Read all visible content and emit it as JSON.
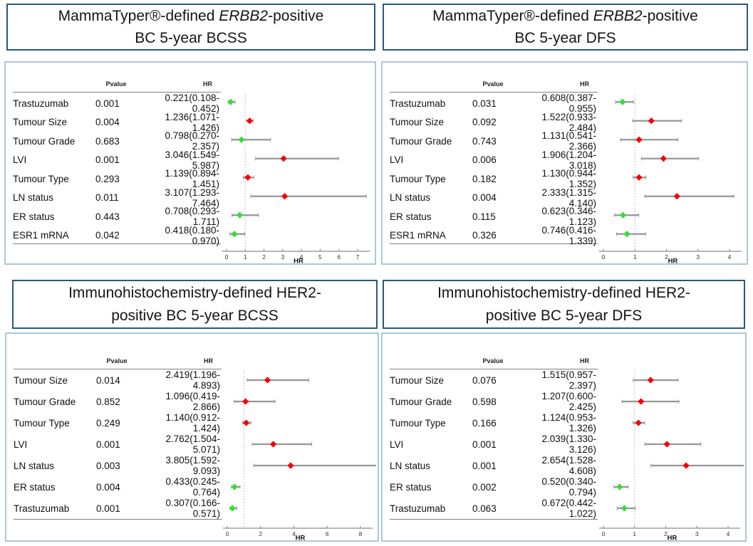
{
  "figure": {
    "table_headers": {
      "pvalue": "Pvalue",
      "hr": "HR"
    },
    "axis_label": "HR",
    "colors": {
      "title_border": "#27597f",
      "panel_border": "#a9c9de",
      "marker_hr_above_1": "#f70000",
      "marker_hr_below_1": "#35dd35",
      "ci_line": "#969696",
      "ref_line": "#b5b5b5",
      "axis_line": "#8a8a8a"
    }
  },
  "chart_data": [
    {
      "type": "scatter",
      "subtype": "forest-plot",
      "title": "MammaTyper®-defined ERBB2-positive BC 5-year BCSS",
      "title_pre": "MammaTyper®-defined ",
      "title_italic": "ERBB2",
      "title_post": "-positive BC 5-year BCSS",
      "xlabel": "HR",
      "xlim": [
        0,
        7
      ],
      "xticks": [
        0,
        1,
        2,
        3,
        4,
        5,
        6,
        7
      ],
      "ref_line": 1,
      "rows": [
        {
          "label": "Trastuzumab",
          "pvalue": "0.001",
          "hr": 0.221,
          "ci_low": 0.108,
          "ci_high": 0.452,
          "hr_text": "0.221(0.108- 0.452)"
        },
        {
          "label": "Tumour Size",
          "pvalue": "0.004",
          "hr": 1.236,
          "ci_low": 1.071,
          "ci_high": 1.426,
          "hr_text": "1.236(1.071- 1.426)"
        },
        {
          "label": "Tumour Grade",
          "pvalue": "0.683",
          "hr": 0.798,
          "ci_low": 0.27,
          "ci_high": 2.357,
          "hr_text": "0.798(0.270- 2.357)"
        },
        {
          "label": "LVI",
          "pvalue": "0.001",
          "hr": 3.046,
          "ci_low": 1.549,
          "ci_high": 5.987,
          "hr_text": "3.046(1.549- 5.987)"
        },
        {
          "label": "Tumour Type",
          "pvalue": "0.293",
          "hr": 1.139,
          "ci_low": 0.894,
          "ci_high": 1.451,
          "hr_text": "1.139(0.894- 1.451)"
        },
        {
          "label": "LN status",
          "pvalue": "0.011",
          "hr": 3.107,
          "ci_low": 1.293,
          "ci_high": 7.464,
          "hr_text": "3.107(1.293- 7.464)"
        },
        {
          "label": "ER status",
          "pvalue": "0.443",
          "hr": 0.708,
          "ci_low": 0.293,
          "ci_high": 1.711,
          "hr_text": "0.708(0.293- 1.711)"
        },
        {
          "label": "ESR1 mRNA",
          "pvalue": "0.042",
          "hr": 0.418,
          "ci_low": 0.18,
          "ci_high": 0.97,
          "hr_text": "0.418(0.180- 0.970)"
        }
      ]
    },
    {
      "type": "scatter",
      "subtype": "forest-plot",
      "title": "MammaTyper®-defined ERBB2-positive BC 5-year DFS",
      "title_pre": "MammaTyper®-defined ",
      "title_italic": "ERBB2",
      "title_post": "-positive BC 5-year DFS",
      "xlabel": "HR",
      "xlim": [
        0,
        4
      ],
      "xticks": [
        0,
        1,
        2,
        3,
        4
      ],
      "ref_line": 1,
      "rows": [
        {
          "label": "Trastuzumab",
          "pvalue": "0.031",
          "hr": 0.608,
          "ci_low": 0.387,
          "ci_high": 0.955,
          "hr_text": "0.608(0.387- 0.955)"
        },
        {
          "label": "Tumour Size",
          "pvalue": "0.092",
          "hr": 1.522,
          "ci_low": 0.933,
          "ci_high": 2.484,
          "hr_text": "1.522(0.933- 2.484)"
        },
        {
          "label": "Tumour Grade",
          "pvalue": "0.743",
          "hr": 1.131,
          "ci_low": 0.541,
          "ci_high": 2.366,
          "hr_text": "1.131(0.541- 2.366)"
        },
        {
          "label": "LVI",
          "pvalue": "0.006",
          "hr": 1.906,
          "ci_low": 1.204,
          "ci_high": 3.018,
          "hr_text": "1.906(1.204- 3.018)"
        },
        {
          "label": "Tumour Type",
          "pvalue": "0.182",
          "hr": 1.13,
          "ci_low": 0.944,
          "ci_high": 1.352,
          "hr_text": "1.130(0.944- 1.352)"
        },
        {
          "label": "LN status",
          "pvalue": "0.004",
          "hr": 2.333,
          "ci_low": 1.315,
          "ci_high": 4.14,
          "hr_text": "2.333(1.315- 4.140)"
        },
        {
          "label": "ER status",
          "pvalue": "0.115",
          "hr": 0.623,
          "ci_low": 0.346,
          "ci_high": 1.123,
          "hr_text": "0.623(0.346- 1.123)"
        },
        {
          "label": "ESR1 mRNA",
          "pvalue": "0.326",
          "hr": 0.746,
          "ci_low": 0.416,
          "ci_high": 1.339,
          "hr_text": "0.746(0.416- 1.339)"
        }
      ]
    },
    {
      "type": "scatter",
      "subtype": "forest-plot",
      "title": "Immunohistochemistry-defined HER2-positive BC 5-year BCSS",
      "title_pre": "Immunohistochemistry-defined HER2-positive BC 5-year BCSS",
      "title_italic": "",
      "title_post": "",
      "xlabel": "HR",
      "xlim": [
        0,
        8
      ],
      "xticks": [
        0,
        2,
        4,
        6,
        8
      ],
      "ref_line": 1,
      "rows": [
        {
          "label": "Tumour Size",
          "pvalue": "0.014",
          "hr": 2.419,
          "ci_low": 1.196,
          "ci_high": 4.893,
          "hr_text": "2.419(1.196- 4.893)"
        },
        {
          "label": "Tumour Grade",
          "pvalue": "0.852",
          "hr": 1.096,
          "ci_low": 0.419,
          "ci_high": 2.866,
          "hr_text": "1.096(0.419- 2.866)"
        },
        {
          "label": "Tumour Type",
          "pvalue": "0.249",
          "hr": 1.14,
          "ci_low": 0.912,
          "ci_high": 1.424,
          "hr_text": "1.140(0.912- 1.424)"
        },
        {
          "label": "LVI",
          "pvalue": "0.001",
          "hr": 2.762,
          "ci_low": 1.504,
          "ci_high": 5.071,
          "hr_text": "2.762(1.504- 5.071)"
        },
        {
          "label": "LN status",
          "pvalue": "0.003",
          "hr": 3.805,
          "ci_low": 1.592,
          "ci_high": 9.093,
          "hr_text": "3.805(1.592- 9.093)"
        },
        {
          "label": "ER status",
          "pvalue": "0.004",
          "hr": 0.433,
          "ci_low": 0.245,
          "ci_high": 0.764,
          "hr_text": "0.433(0.245- 0.764)"
        },
        {
          "label": "Trastuzumab",
          "pvalue": "0.001",
          "hr": 0.307,
          "ci_low": 0.166,
          "ci_high": 0.571,
          "hr_text": "0.307(0.166- 0.571)"
        }
      ]
    },
    {
      "type": "scatter",
      "subtype": "forest-plot",
      "title": "Immunohistochemistry-defined HER2-positive BC 5-year DFS",
      "title_pre": "Immunohistochemistry-defined HER2-positive BC 5-year DFS",
      "title_italic": "",
      "title_post": "",
      "xlabel": "HR",
      "xlim": [
        0,
        4
      ],
      "xticks": [
        0,
        1,
        2,
        3,
        4
      ],
      "ref_line": 1,
      "rows": [
        {
          "label": "Tumour Size",
          "pvalue": "0.076",
          "hr": 1.515,
          "ci_low": 0.957,
          "ci_high": 2.397,
          "hr_text": "1.515(0.957- 2.397)"
        },
        {
          "label": "Tumour Grade",
          "pvalue": "0.598",
          "hr": 1.207,
          "ci_low": 0.6,
          "ci_high": 2.425,
          "hr_text": "1.207(0.600- 2.425)"
        },
        {
          "label": "Tumour Type",
          "pvalue": "0.166",
          "hr": 1.124,
          "ci_low": 0.953,
          "ci_high": 1.326,
          "hr_text": "1.124(0.953- 1.326)"
        },
        {
          "label": "LVI",
          "pvalue": "0.001",
          "hr": 2.039,
          "ci_low": 1.33,
          "ci_high": 3.126,
          "hr_text": "2.039(1.330- 3.126)"
        },
        {
          "label": "LN status",
          "pvalue": "0.001",
          "hr": 2.654,
          "ci_low": 1.528,
          "ci_high": 4.608,
          "hr_text": "2.654(1.528- 4.608)"
        },
        {
          "label": "ER status",
          "pvalue": "0.002",
          "hr": 0.52,
          "ci_low": 0.34,
          "ci_high": 0.794,
          "hr_text": "0.520(0.340- 0.794)"
        },
        {
          "label": "Trastuzumab",
          "pvalue": "0.063",
          "hr": 0.672,
          "ci_low": 0.442,
          "ci_high": 1.022,
          "hr_text": "0.672(0.442- 1.022)"
        }
      ]
    }
  ]
}
